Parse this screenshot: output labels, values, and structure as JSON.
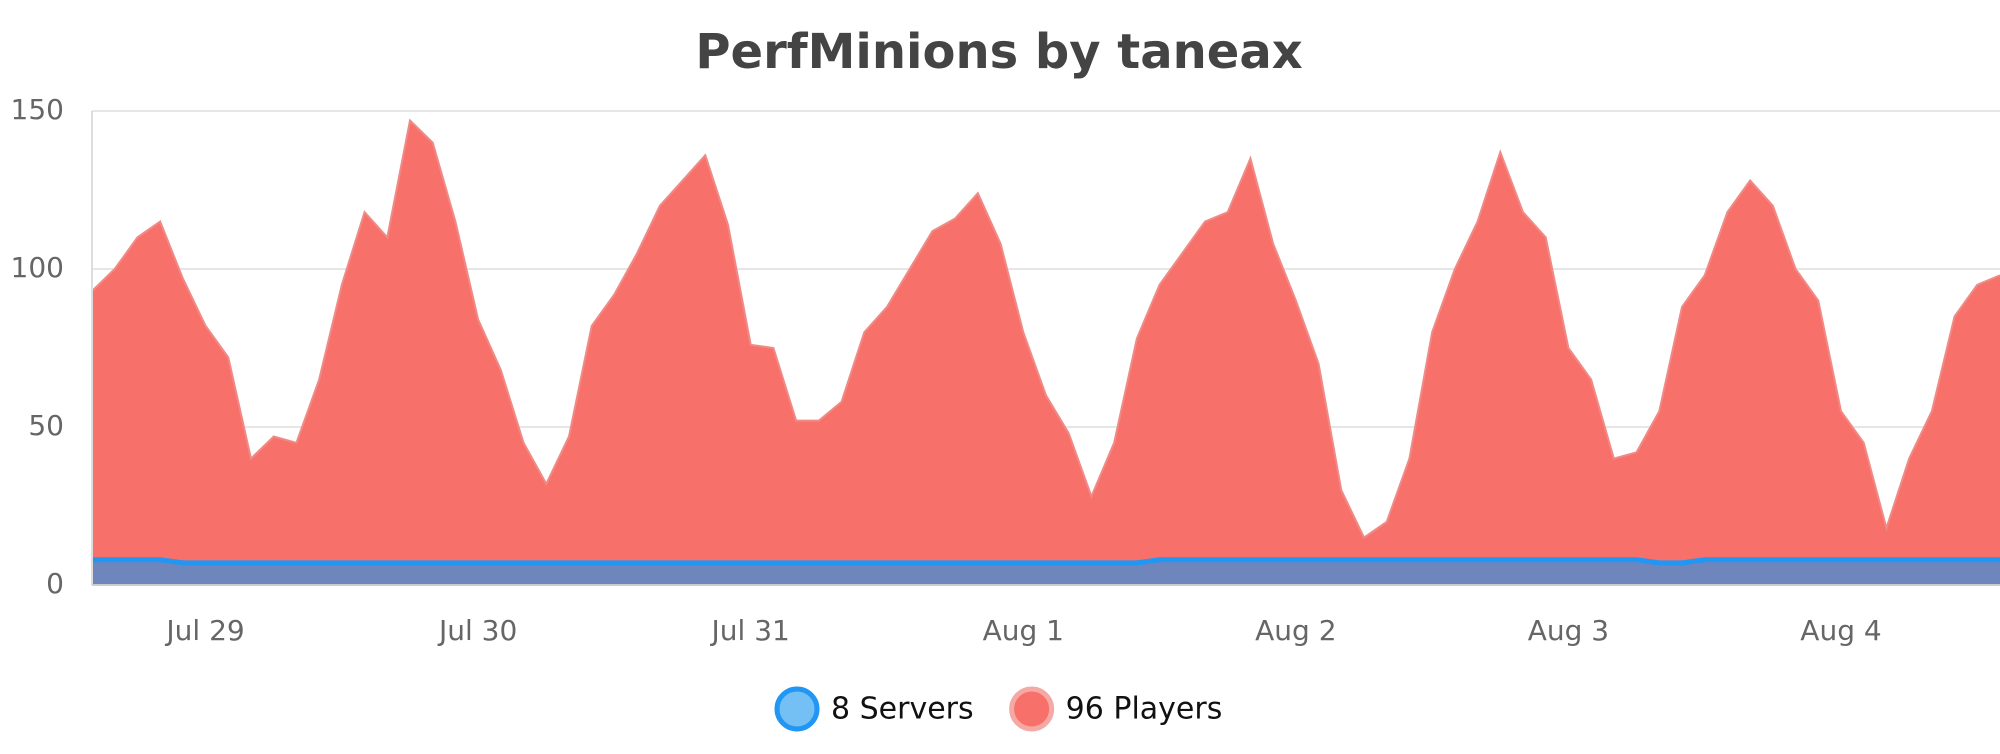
{
  "chart_data": {
    "type": "area",
    "title": "PerfMinions by taneax",
    "categories": [
      null,
      null,
      null,
      null,
      null,
      "Jul 29",
      null,
      null,
      null,
      null,
      null,
      null,
      null,
      null,
      null,
      null,
      null,
      "Jul 30",
      null,
      null,
      null,
      null,
      null,
      null,
      null,
      null,
      null,
      null,
      null,
      "Jul 31",
      null,
      null,
      null,
      null,
      null,
      null,
      null,
      null,
      null,
      null,
      null,
      "Aug 1",
      null,
      null,
      null,
      null,
      null,
      null,
      null,
      null,
      null,
      null,
      null,
      "Aug 2",
      null,
      null,
      null,
      null,
      null,
      null,
      null,
      null,
      null,
      null,
      null,
      "Aug 3",
      null,
      null,
      null,
      null,
      null,
      null,
      null,
      null,
      null,
      null,
      null,
      "Aug 4",
      null,
      null,
      null,
      null,
      null,
      null,
      null
    ],
    "series": [
      {
        "name": "8 Servers",
        "color": "#2196f3",
        "fill": "#6f86bd",
        "values": [
          8,
          8,
          8,
          8,
          7,
          7,
          7,
          7,
          7,
          7,
          7,
          7,
          7,
          7,
          7,
          7,
          7,
          7,
          7,
          7,
          7,
          7,
          7,
          7,
          7,
          7,
          7,
          7,
          7,
          7,
          7,
          7,
          7,
          7,
          7,
          7,
          7,
          7,
          7,
          7,
          7,
          7,
          7,
          7,
          7,
          7,
          7,
          8,
          8,
          8,
          8,
          8,
          8,
          8,
          8,
          8,
          8,
          8,
          8,
          8,
          8,
          8,
          8,
          8,
          8,
          8,
          8,
          8,
          8,
          7,
          7,
          8,
          8,
          8,
          8,
          8,
          8,
          8,
          8,
          8,
          8,
          8,
          8,
          8,
          8
        ]
      },
      {
        "name": "96 Players",
        "color": "#f08a86",
        "fill": "#f7716a",
        "values": [
          93,
          100,
          110,
          115,
          97,
          82,
          72,
          40,
          47,
          45,
          65,
          95,
          118,
          110,
          147,
          140,
          115,
          84,
          68,
          45,
          32,
          47,
          82,
          92,
          105,
          120,
          128,
          136,
          114,
          76,
          75,
          52,
          52,
          58,
          80,
          88,
          100,
          112,
          116,
          124,
          108,
          80,
          60,
          48,
          28,
          45,
          78,
          95,
          105,
          115,
          118,
          135,
          108,
          90,
          70,
          30,
          15,
          20,
          40,
          80,
          100,
          115,
          137,
          118,
          110,
          75,
          65,
          40,
          42,
          55,
          88,
          98,
          118,
          128,
          120,
          100,
          90,
          55,
          45,
          18,
          40,
          55,
          85,
          95,
          98
        ]
      }
    ],
    "ylim": [
      0,
      150
    ],
    "yticks": [
      0,
      50,
      100,
      150
    ],
    "grid": true,
    "legend": "bottom"
  }
}
